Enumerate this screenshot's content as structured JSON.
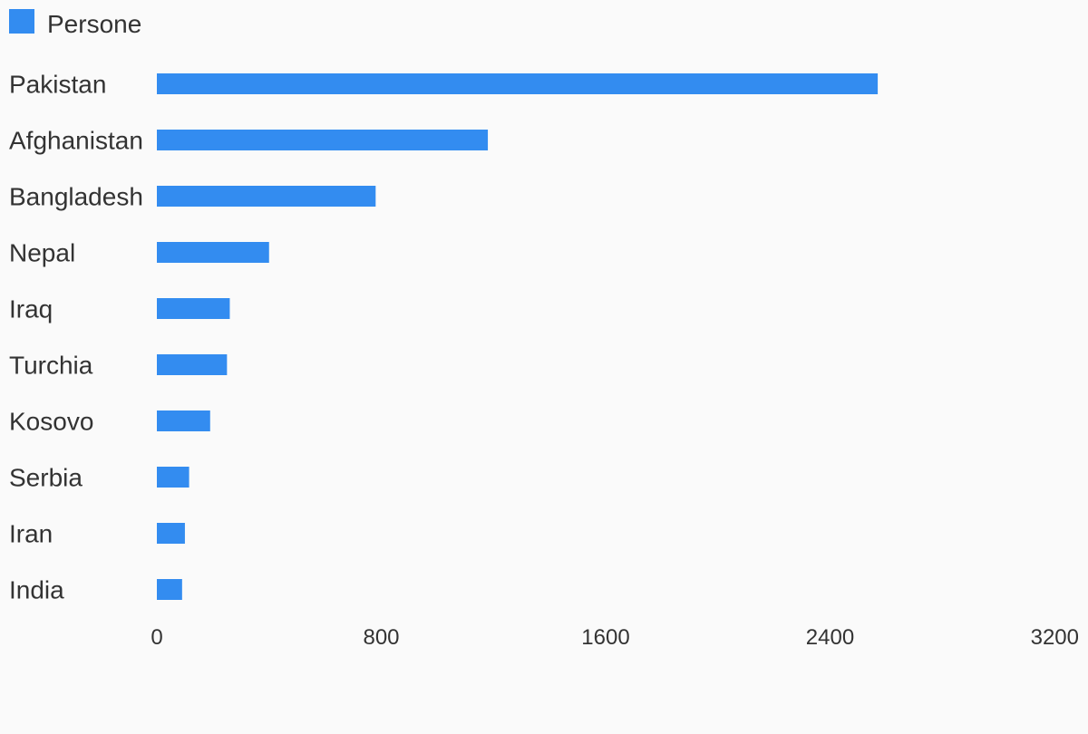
{
  "chart_data": {
    "type": "bar",
    "orientation": "horizontal",
    "categories": [
      "Pakistan",
      "Afghanistan",
      "Bangladesh",
      "Nepal",
      "Iraq",
      "Turchia",
      "Kosovo",
      "Serbia",
      "Iran",
      "India"
    ],
    "series": [
      {
        "name": "Persone",
        "color": "#338cf0",
        "values": [
          2570,
          1180,
          780,
          400,
          260,
          250,
          190,
          115,
          100,
          90
        ]
      }
    ],
    "xlim": [
      0,
      3200
    ],
    "xticks": [
      "0",
      "800",
      "1600",
      "2400",
      "3200"
    ],
    "legend": {
      "position": "top-left"
    },
    "grid": false
  }
}
